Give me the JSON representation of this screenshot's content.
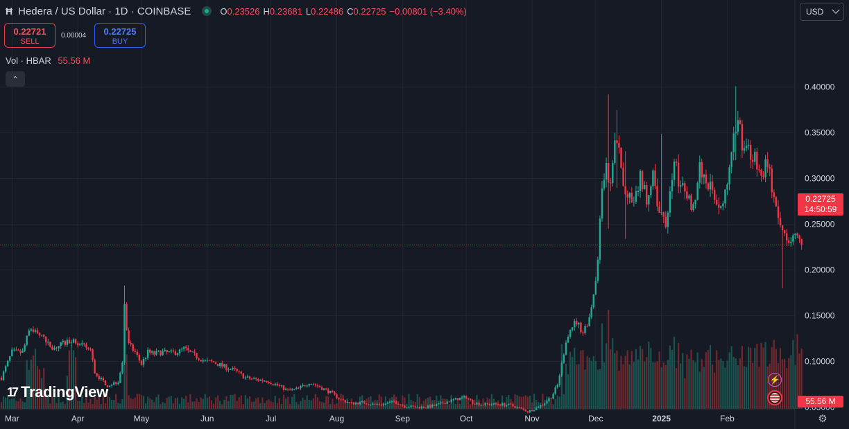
{
  "header": {
    "symbol_icon": "Ħ",
    "title": "Hedera / US Dollar · 1D · COINBASE",
    "ohlc": [
      {
        "k": "O",
        "v": "0.23526"
      },
      {
        "k": "H",
        "v": "0.23681"
      },
      {
        "k": "L",
        "v": "0.22486"
      },
      {
        "k": "C",
        "v": "0.22725"
      },
      {
        "k": "",
        "v": "−0.00801 (−3.40%)"
      }
    ]
  },
  "trade": {
    "sell_price": "0.22721",
    "sell_label": "SELL",
    "spread": "0.00004",
    "buy_price": "0.22725",
    "buy_label": "BUY"
  },
  "volume_legend": {
    "label": "Vol · HBAR",
    "value": "55.56 M"
  },
  "currency": "USD",
  "last_price": {
    "price": "0.22725",
    "countdown": "14:50:59"
  },
  "volume_tag": "55.56 M",
  "brand": {
    "text": "TradingView",
    "mark": "17"
  },
  "colors": {
    "up": "#22ab94",
    "down": "#f23645",
    "background": "#161a25",
    "grid": "#22262f",
    "text": "#d1d4dc"
  },
  "icons": {
    "settings": "gear-icon",
    "alert": "lightning-icon",
    "flag": "us-flag-icon",
    "collapse": "chevron-up-icon"
  },
  "chart_data": {
    "type": "candlestick",
    "title": "Hedera / US Dollar · 1D · COINBASE",
    "y_ticks": [
      0.05,
      0.1,
      0.15,
      0.2,
      0.25,
      0.3,
      0.35,
      0.4
    ],
    "y_tick_labels": [
      "0.05000",
      "0.10000",
      "0.15000",
      "0.20000",
      "0.25000",
      "0.30000",
      "0.35000",
      "0.40000"
    ],
    "ylim": [
      0.0,
      0.41
    ],
    "x_labels": [
      "Mar",
      "Apr",
      "May",
      "Jun",
      "Jul",
      "Aug",
      "Sep",
      "Oct",
      "Nov",
      "Dec",
      "2025",
      "Feb"
    ],
    "x_label_days": [
      5,
      36,
      66,
      97,
      127,
      158,
      189,
      219,
      250,
      280,
      311,
      342
    ],
    "start_date": "2024-02-25",
    "days": 358,
    "price_anchors": [
      [
        0,
        0.082
      ],
      [
        5,
        0.11
      ],
      [
        10,
        0.11
      ],
      [
        12,
        0.125
      ],
      [
        14,
        0.136
      ],
      [
        18,
        0.13
      ],
      [
        21,
        0.12
      ],
      [
        25,
        0.115
      ],
      [
        30,
        0.12
      ],
      [
        33,
        0.124
      ],
      [
        37,
        0.117
      ],
      [
        40,
        0.115
      ],
      [
        42,
        0.112
      ],
      [
        44,
        0.088
      ],
      [
        47,
        0.08
      ],
      [
        50,
        0.074
      ],
      [
        55,
        0.078
      ],
      [
        57,
        0.1
      ],
      [
        58,
        0.158
      ],
      [
        60,
        0.118
      ],
      [
        63,
        0.11
      ],
      [
        66,
        0.097
      ],
      [
        69,
        0.11
      ],
      [
        72,
        0.108
      ],
      [
        75,
        0.11
      ],
      [
        80,
        0.109
      ],
      [
        84,
        0.111
      ],
      [
        86,
        0.114
      ],
      [
        89,
        0.109
      ],
      [
        93,
        0.104
      ],
      [
        96,
        0.1
      ],
      [
        100,
        0.099
      ],
      [
        105,
        0.094
      ],
      [
        110,
        0.09
      ],
      [
        115,
        0.082
      ],
      [
        120,
        0.08
      ],
      [
        125,
        0.079
      ],
      [
        130,
        0.074
      ],
      [
        135,
        0.068
      ],
      [
        140,
        0.07
      ],
      [
        145,
        0.077
      ],
      [
        150,
        0.072
      ],
      [
        155,
        0.066
      ],
      [
        160,
        0.058
      ],
      [
        165,
        0.054
      ],
      [
        170,
        0.055
      ],
      [
        175,
        0.053
      ],
      [
        180,
        0.053
      ],
      [
        185,
        0.056
      ],
      [
        190,
        0.051
      ],
      [
        195,
        0.05
      ],
      [
        200,
        0.05
      ],
      [
        205,
        0.052
      ],
      [
        210,
        0.056
      ],
      [
        215,
        0.059
      ],
      [
        219,
        0.061
      ],
      [
        222,
        0.055
      ],
      [
        226,
        0.053
      ],
      [
        230,
        0.053
      ],
      [
        235,
        0.053
      ],
      [
        240,
        0.052
      ],
      [
        245,
        0.048
      ],
      [
        248,
        0.045
      ],
      [
        251,
        0.048
      ],
      [
        255,
        0.053
      ],
      [
        259,
        0.061
      ],
      [
        262,
        0.074
      ],
      [
        264,
        0.097
      ],
      [
        266,
        0.123
      ],
      [
        268,
        0.138
      ],
      [
        271,
        0.143
      ],
      [
        274,
        0.132
      ],
      [
        277,
        0.148
      ],
      [
        279,
        0.175
      ],
      [
        281,
        0.21
      ],
      [
        283,
        0.29
      ],
      [
        285,
        0.31
      ],
      [
        287,
        0.29
      ],
      [
        289,
        0.34
      ],
      [
        291,
        0.33
      ],
      [
        293,
        0.29
      ],
      [
        295,
        0.28
      ],
      [
        298,
        0.27
      ],
      [
        301,
        0.3
      ],
      [
        304,
        0.28
      ],
      [
        307,
        0.3
      ],
      [
        310,
        0.26
      ],
      [
        313,
        0.25
      ],
      [
        317,
        0.32
      ],
      [
        320,
        0.29
      ],
      [
        323,
        0.28
      ],
      [
        326,
        0.27
      ],
      [
        329,
        0.31
      ],
      [
        332,
        0.3
      ],
      [
        336,
        0.28
      ],
      [
        339,
        0.27
      ],
      [
        342,
        0.29
      ],
      [
        345,
        0.34
      ],
      [
        347,
        0.37
      ],
      [
        349,
        0.34
      ],
      [
        352,
        0.33
      ],
      [
        355,
        0.32
      ],
      [
        358,
        0.3
      ],
      [
        361,
        0.32
      ],
      [
        363,
        0.29
      ],
      [
        366,
        0.25
      ],
      [
        369,
        0.24
      ],
      [
        372,
        0.235
      ],
      [
        374,
        0.235
      ],
      [
        377,
        0.2273
      ]
    ],
    "spikes": [
      {
        "day": 58,
        "high": 0.183,
        "low": 0.096
      },
      {
        "day": 286,
        "high": 0.392,
        "low": 0.245
      },
      {
        "day": 290,
        "high": 0.375,
        "low": 0.29
      },
      {
        "day": 294,
        "high": 0.33,
        "low": 0.234
      },
      {
        "day": 311,
        "high": 0.349,
        "low": 0.26
      },
      {
        "day": 346,
        "high": 0.401,
        "low": 0.32
      },
      {
        "day": 368,
        "high": 0.246,
        "low": 0.18
      }
    ],
    "last_close": 0.22725,
    "volume_peak_days": [
      {
        "day": 58,
        "vol": 1.0
      },
      {
        "day": 264,
        "vol": 0.72
      },
      {
        "day": 270,
        "vol": 0.68
      },
      {
        "day": 283,
        "vol": 0.95
      },
      {
        "day": 286,
        "vol": 1.1
      },
      {
        "day": 300,
        "vol": 0.55
      },
      {
        "day": 346,
        "vol": 0.56
      },
      {
        "day": 368,
        "vol": 0.55
      }
    ]
  }
}
